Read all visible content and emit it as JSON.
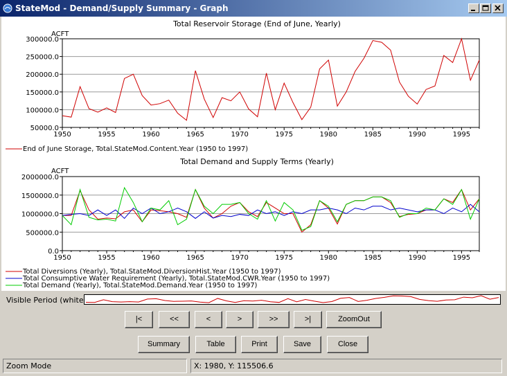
{
  "window": {
    "title": "StateMod - Demand/Supply Summary - Graph"
  },
  "colors": {
    "red": "#d00000",
    "blue": "#0000cc",
    "green": "#00cc00",
    "grid": "#999999"
  },
  "chart_data": [
    {
      "type": "line",
      "title": "Total Reservoir Storage (End of June, Yearly)",
      "ylabel": "ACFT",
      "ylim": [
        50000,
        300000
      ],
      "xlim": [
        1950,
        1997
      ],
      "yticks": [
        "50000.0",
        "100000.0",
        "150000.0",
        "200000.0",
        "250000.0",
        "300000.0"
      ],
      "xticks": [
        "1950",
        "1955",
        "1960",
        "1965",
        "1970",
        "1975",
        "1980",
        "1985",
        "1990",
        "1995"
      ],
      "x": [
        1950,
        1951,
        1952,
        1953,
        1954,
        1955,
        1956,
        1957,
        1958,
        1959,
        1960,
        1961,
        1962,
        1963,
        1964,
        1965,
        1966,
        1967,
        1968,
        1969,
        1970,
        1971,
        1972,
        1973,
        1974,
        1975,
        1976,
        1977,
        1978,
        1979,
        1980,
        1981,
        1982,
        1983,
        1984,
        1985,
        1986,
        1987,
        1988,
        1989,
        1990,
        1991,
        1992,
        1993,
        1994,
        1995,
        1996,
        1997
      ],
      "series": [
        {
          "name": "End of June Storage, Total.StateMod.Content.Year (1950 to 1997)",
          "color": "#d00000",
          "values": [
            83000,
            79000,
            165000,
            103000,
            93000,
            105000,
            92000,
            188000,
            200000,
            140000,
            113000,
            117000,
            127000,
            90000,
            70000,
            210000,
            130000,
            78000,
            134000,
            125000,
            150000,
            102000,
            80000,
            203000,
            100000,
            175000,
            120000,
            72000,
            107000,
            215000,
            240000,
            110000,
            150000,
            208000,
            245000,
            295000,
            290000,
            268000,
            178000,
            138000,
            116000,
            157000,
            167000,
            253000,
            233000,
            300000,
            183000,
            240000
          ]
        }
      ]
    },
    {
      "type": "line",
      "title": "Total Demand and Supply Terms (Yearly)",
      "ylabel": "ACFT",
      "ylim": [
        0,
        2000000
      ],
      "xlim": [
        1950,
        1997
      ],
      "yticks": [
        "0.0",
        "500000.0",
        "1000000.0",
        "1500000.0",
        "2000000.0"
      ],
      "xticks": [
        "1950",
        "1955",
        "1960",
        "1965",
        "1970",
        "1975",
        "1980",
        "1985",
        "1990",
        "1995"
      ],
      "x": [
        1950,
        1951,
        1952,
        1953,
        1954,
        1955,
        1956,
        1957,
        1958,
        1959,
        1960,
        1961,
        1962,
        1963,
        1964,
        1965,
        1966,
        1967,
        1968,
        1969,
        1970,
        1971,
        1972,
        1973,
        1974,
        1975,
        1976,
        1977,
        1978,
        1979,
        1980,
        1981,
        1982,
        1983,
        1984,
        1985,
        1986,
        1987,
        1988,
        1989,
        1990,
        1991,
        1992,
        1993,
        1994,
        1995,
        1996,
        1997
      ],
      "series": [
        {
          "name": "Total Diversions (Yearly), Total.StateMod.DiversionHist.Year (1950 to 1997)",
          "color": "#d00000",
          "values": [
            950000,
            950000,
            1620000,
            1100000,
            850000,
            880000,
            860000,
            1050000,
            1100000,
            780000,
            1100000,
            1080000,
            1050000,
            1000000,
            900000,
            1650000,
            1150000,
            880000,
            1000000,
            1200000,
            1300000,
            1050000,
            920000,
            1300000,
            1150000,
            1000000,
            1000000,
            500000,
            700000,
            1350000,
            1150000,
            720000,
            1250000,
            1350000,
            1350000,
            1450000,
            1450000,
            1300000,
            920000,
            980000,
            1000000,
            1100000,
            1100000,
            1400000,
            1300000,
            1650000,
            1100000,
            1400000
          ]
        },
        {
          "name": "Total Consumptive Water Requirement (Yearly), Total.StateMod.CWR.Year (1950 to 1997)",
          "color": "#0000cc",
          "values": [
            950000,
            980000,
            1000000,
            950000,
            1100000,
            950000,
            1100000,
            870000,
            1150000,
            1000000,
            1150000,
            1000000,
            1050000,
            1150000,
            1050000,
            870000,
            1050000,
            880000,
            950000,
            920000,
            980000,
            950000,
            1100000,
            1000000,
            1050000,
            950000,
            1050000,
            1000000,
            1100000,
            1100000,
            1150000,
            1100000,
            1000000,
            1150000,
            1100000,
            1200000,
            1200000,
            1100000,
            1150000,
            1100000,
            1050000,
            1100000,
            1100000,
            1000000,
            1150000,
            1050000,
            1250000,
            1050000
          ]
        },
        {
          "name": "Total Demand (Yearly), Total.StateMod.Demand.Year (1950 to 1997)",
          "color": "#00cc00",
          "values": [
            950000,
            700000,
            1650000,
            900000,
            830000,
            850000,
            800000,
            1700000,
            1300000,
            780000,
            1150000,
            1100000,
            1350000,
            700000,
            850000,
            1650000,
            1200000,
            1000000,
            1250000,
            1250000,
            1300000,
            1000000,
            850000,
            1350000,
            800000,
            1300000,
            1100000,
            550000,
            650000,
            1350000,
            1200000,
            780000,
            1250000,
            1350000,
            1350000,
            1450000,
            1450000,
            1350000,
            900000,
            1000000,
            1000000,
            1150000,
            1100000,
            1400000,
            1250000,
            1650000,
            850000,
            1400000
          ]
        }
      ]
    }
  ],
  "visible_period": {
    "label": "Visible Period (white):"
  },
  "nav": {
    "first": "|<",
    "prev_page": "<<",
    "prev": "<",
    "next": ">",
    "next_page": ">>",
    "last": ">|",
    "zoom_out": "ZoomOut"
  },
  "actions": {
    "summary": "Summary",
    "table": "Table",
    "print": "Print",
    "save": "Save",
    "close": "Close"
  },
  "status": {
    "mode": "Zoom Mode",
    "coords": "X:  1980,  Y:  115506.6"
  }
}
